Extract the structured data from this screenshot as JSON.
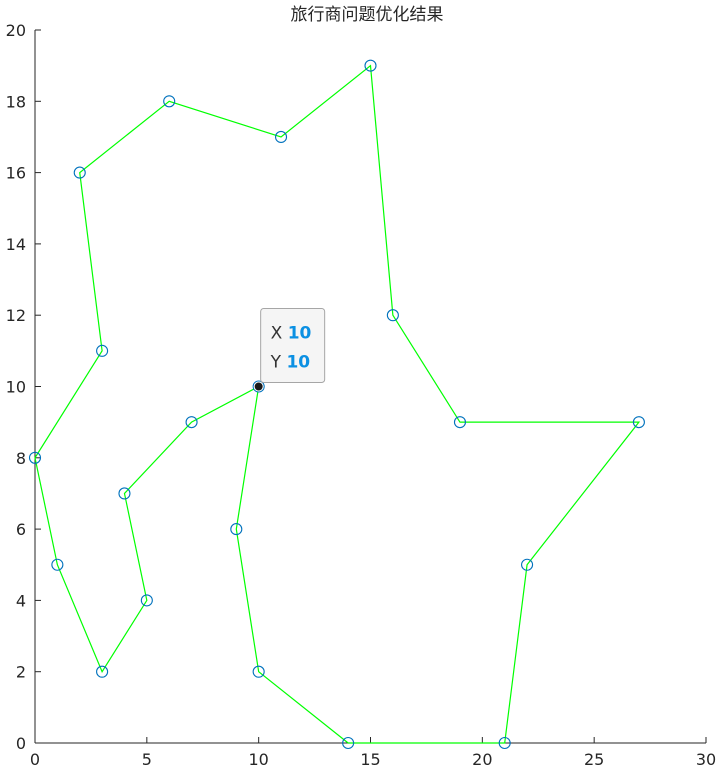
{
  "chart_data": {
    "type": "line",
    "title": "旅行商问题优化结果",
    "xlabel": "",
    "ylabel": "",
    "xlim": [
      0,
      30
    ],
    "ylim": [
      0,
      20
    ],
    "xticks": [
      0,
      5,
      10,
      15,
      20,
      25,
      30
    ],
    "yticks": [
      0,
      2,
      4,
      6,
      8,
      10,
      12,
      14,
      16,
      18,
      20
    ],
    "grid": false,
    "series": [
      {
        "route": [
          [
            10,
            10
          ],
          [
            7,
            9
          ],
          [
            4,
            7
          ],
          [
            5,
            4
          ],
          [
            3,
            2
          ],
          [
            1,
            5
          ],
          [
            0,
            8
          ],
          [
            3,
            11
          ],
          [
            2,
            16
          ],
          [
            6,
            18
          ],
          [
            11,
            17
          ],
          [
            15,
            19
          ],
          [
            16,
            12
          ],
          [
            19,
            9
          ],
          [
            27,
            9
          ],
          [
            22,
            5
          ],
          [
            21,
            0
          ],
          [
            14,
            0
          ],
          [
            10,
            2
          ],
          [
            9,
            6
          ],
          [
            10,
            10
          ]
        ],
        "line_color": "#00ff00",
        "marker_color": "#0072bd",
        "marker": "circle"
      }
    ],
    "datatip": {
      "x_label": "X",
      "y_label": "Y",
      "x_value": "10",
      "y_value": "10",
      "point": [
        10,
        10
      ],
      "value_color": "#0b90e3"
    }
  }
}
